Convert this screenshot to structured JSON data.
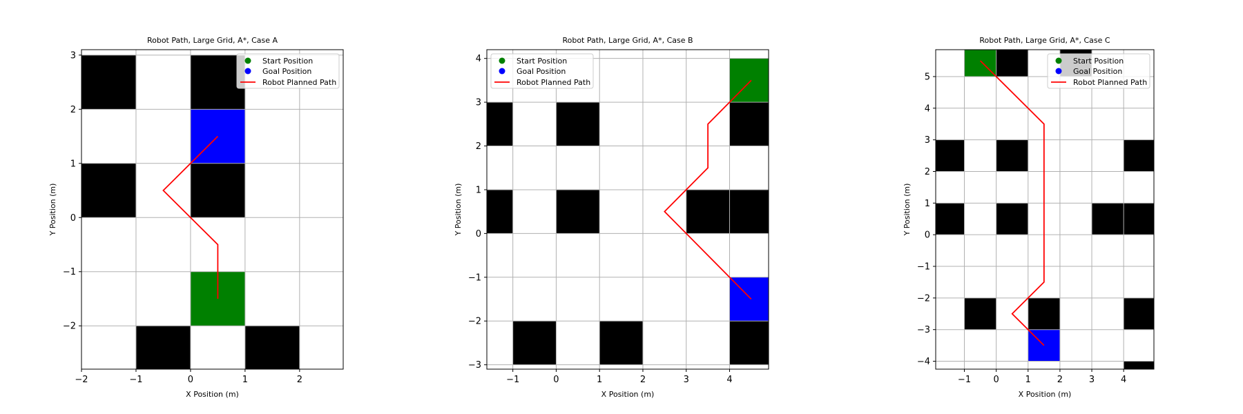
{
  "colors": {
    "obstacle": "#000000",
    "start": "#008000",
    "goal": "#0000ff",
    "path": "#ff0000",
    "grid": "#b0b0b0",
    "background": "#ffffff"
  },
  "chart_data": [
    {
      "type": "scatter",
      "title": "Robot Path, Large Grid, A*, Case A",
      "xlabel": "X Position (m)",
      "ylabel": "Y Position (m)",
      "xlim": [
        -2,
        2.8
      ],
      "ylim": [
        -2.8,
        3.1
      ],
      "xticks": [
        -2,
        -1,
        0,
        1,
        2
      ],
      "yticks": [
        -2,
        -1,
        0,
        1,
        2,
        3
      ],
      "xtick_labels": [
        "−2",
        "−1",
        "0",
        "1",
        "2"
      ],
      "ytick_labels": [
        "−2",
        "−1",
        "0",
        "1",
        "2",
        "3"
      ],
      "grid": true,
      "legend_position": "top-right",
      "legend": [
        "Start Position",
        "Goal Position",
        "Robot Planned Path"
      ],
      "obstacle_cells": [
        [
          -2,
          2
        ],
        [
          0,
          2
        ],
        [
          -2,
          0
        ],
        [
          0,
          0
        ],
        [
          -1,
          -3
        ],
        [
          1,
          -3
        ]
      ],
      "start_cell": [
        0,
        -2
      ],
      "goal_cell": [
        0,
        1
      ],
      "start": [
        0.5,
        -1.5
      ],
      "goal": [
        0.5,
        1.5
      ],
      "path": [
        [
          0.5,
          -1.5
        ],
        [
          0.5,
          -0.5
        ],
        [
          -0.5,
          0.5
        ],
        [
          0.5,
          1.5
        ]
      ]
    },
    {
      "type": "scatter",
      "title": "Robot Path, Large Grid, A*, Case B",
      "xlabel": "X Position (m)",
      "ylabel": "Y Position (m)",
      "xlim": [
        -1.6,
        4.9
      ],
      "ylim": [
        -3.1,
        4.2
      ],
      "xticks": [
        -1,
        0,
        1,
        2,
        3,
        4
      ],
      "yticks": [
        -3,
        -2,
        -1,
        0,
        1,
        2,
        3,
        4
      ],
      "xtick_labels": [
        "−1",
        "0",
        "1",
        "2",
        "3",
        "4"
      ],
      "ytick_labels": [
        "−3",
        "−2",
        "−1",
        "0",
        "1",
        "2",
        "3",
        "4"
      ],
      "grid": true,
      "legend_position": "top-left",
      "legend": [
        "Start Position",
        "Goal Position",
        "Robot Planned Path"
      ],
      "obstacle_cells": [
        [
          -2,
          2
        ],
        [
          0,
          2
        ],
        [
          4,
          2
        ],
        [
          -2,
          0
        ],
        [
          0,
          0
        ],
        [
          3,
          0
        ],
        [
          4,
          0
        ],
        [
          -1,
          -3
        ],
        [
          1,
          -3
        ],
        [
          4,
          -3
        ]
      ],
      "start_cell": [
        4,
        3
      ],
      "goal_cell": [
        4,
        -2
      ],
      "start": [
        4.5,
        3.5
      ],
      "goal": [
        4.5,
        -1.5
      ],
      "path": [
        [
          4.5,
          3.5
        ],
        [
          3.5,
          2.5
        ],
        [
          3.5,
          1.5
        ],
        [
          2.5,
          0.5
        ],
        [
          4.5,
          -1.5
        ]
      ]
    },
    {
      "type": "scatter",
      "title": "Robot Path, Large Grid, A*, Case C",
      "xlabel": "X Position (m)",
      "ylabel": "Y Position (m)",
      "xlim": [
        -1.9,
        4.95
      ],
      "ylim": [
        -4.25,
        5.85
      ],
      "xticks": [
        -1,
        0,
        1,
        2,
        3,
        4
      ],
      "yticks": [
        -4,
        -3,
        -2,
        -1,
        0,
        1,
        2,
        3,
        4,
        5
      ],
      "xtick_labels": [
        "−1",
        "0",
        "1",
        "2",
        "3",
        "4"
      ],
      "ytick_labels": [
        "−4",
        "−3",
        "−2",
        "−1",
        "0",
        "1",
        "2",
        "3",
        "4",
        "5"
      ],
      "grid": true,
      "legend_position": "top-right",
      "legend": [
        "Start Position",
        "Goal Position",
        "Robot Planned Path"
      ],
      "obstacle_cells": [
        [
          0,
          5
        ],
        [
          2,
          5
        ],
        [
          -2,
          2
        ],
        [
          0,
          2
        ],
        [
          4,
          2
        ],
        [
          -2,
          0
        ],
        [
          0,
          0
        ],
        [
          3,
          0
        ],
        [
          4,
          0
        ],
        [
          -1,
          -3
        ],
        [
          1,
          -3
        ],
        [
          4,
          -3
        ],
        [
          4,
          -5
        ]
      ],
      "start_cell": [
        -1,
        5
      ],
      "goal_cell": [
        1,
        -4
      ],
      "start": [
        -0.5,
        5.5
      ],
      "goal": [
        1.5,
        -3.5
      ],
      "path": [
        [
          -0.5,
          5.5
        ],
        [
          1.5,
          3.5
        ],
        [
          1.5,
          -1.5
        ],
        [
          0.5,
          -2.5
        ],
        [
          1.5,
          -3.5
        ]
      ]
    }
  ]
}
